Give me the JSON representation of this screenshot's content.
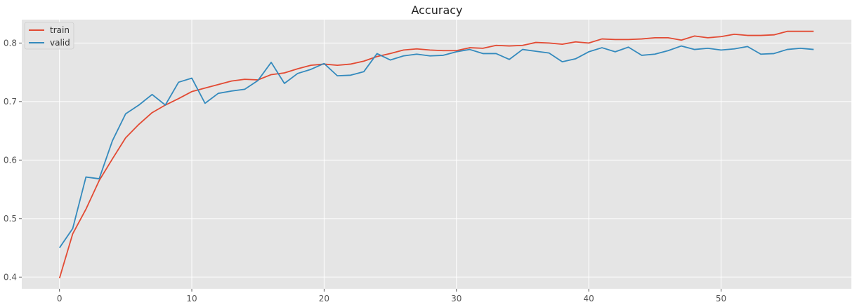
{
  "chart_data": {
    "type": "line",
    "title": "Accuracy",
    "xlabel": "",
    "ylabel": "",
    "xlim": [
      -2.85,
      59.85
    ],
    "ylim": [
      0.38,
      0.84
    ],
    "x_ticks": [
      0,
      10,
      20,
      30,
      40,
      50
    ],
    "y_ticks": [
      0.4,
      0.5,
      0.6,
      0.7,
      0.8
    ],
    "grid": true,
    "legend_position": "top-left",
    "series": [
      {
        "name": "train",
        "color": "#E24A33",
        "x": [
          0,
          1,
          2,
          3,
          4,
          5,
          6,
          7,
          8,
          9,
          10,
          11,
          12,
          13,
          14,
          15,
          16,
          17,
          18,
          19,
          20,
          21,
          22,
          23,
          24,
          25,
          26,
          27,
          28,
          29,
          30,
          31,
          32,
          33,
          34,
          35,
          36,
          37,
          38,
          39,
          40,
          41,
          42,
          43,
          44,
          45,
          46,
          47,
          48,
          49,
          50,
          51,
          52,
          53,
          54,
          55,
          56,
          57
        ],
        "values": [
          0.398,
          0.474,
          0.516,
          0.565,
          0.602,
          0.638,
          0.661,
          0.681,
          0.694,
          0.705,
          0.717,
          0.723,
          0.729,
          0.735,
          0.738,
          0.737,
          0.746,
          0.749,
          0.756,
          0.762,
          0.764,
          0.762,
          0.764,
          0.769,
          0.777,
          0.782,
          0.788,
          0.79,
          0.788,
          0.787,
          0.787,
          0.792,
          0.791,
          0.796,
          0.795,
          0.796,
          0.801,
          0.8,
          0.798,
          0.802,
          0.8,
          0.807,
          0.806,
          0.806,
          0.807,
          0.809,
          0.809,
          0.805,
          0.812,
          0.809,
          0.811,
          0.815,
          0.813,
          0.813,
          0.814,
          0.82,
          0.82,
          0.82
        ]
      },
      {
        "name": "valid",
        "color": "#348ABD",
        "x": [
          0,
          1,
          2,
          3,
          4,
          5,
          6,
          7,
          8,
          9,
          10,
          11,
          12,
          13,
          14,
          15,
          16,
          17,
          18,
          19,
          20,
          21,
          22,
          23,
          24,
          25,
          26,
          27,
          28,
          29,
          30,
          31,
          32,
          33,
          34,
          35,
          36,
          37,
          38,
          39,
          40,
          41,
          42,
          43,
          44,
          45,
          46,
          47,
          48,
          49,
          50,
          51,
          52,
          53,
          54,
          55,
          56,
          57
        ],
        "values": [
          0.45,
          0.483,
          0.571,
          0.568,
          0.633,
          0.679,
          0.694,
          0.712,
          0.694,
          0.733,
          0.74,
          0.697,
          0.714,
          0.718,
          0.721,
          0.736,
          0.767,
          0.731,
          0.748,
          0.755,
          0.765,
          0.744,
          0.745,
          0.751,
          0.782,
          0.771,
          0.778,
          0.781,
          0.778,
          0.779,
          0.785,
          0.789,
          0.782,
          0.782,
          0.772,
          0.789,
          0.786,
          0.783,
          0.768,
          0.773,
          0.785,
          0.792,
          0.785,
          0.793,
          0.779,
          0.781,
          0.787,
          0.795,
          0.789,
          0.791,
          0.788,
          0.79,
          0.794,
          0.781,
          0.782,
          0.789,
          0.791,
          0.789
        ]
      }
    ]
  }
}
